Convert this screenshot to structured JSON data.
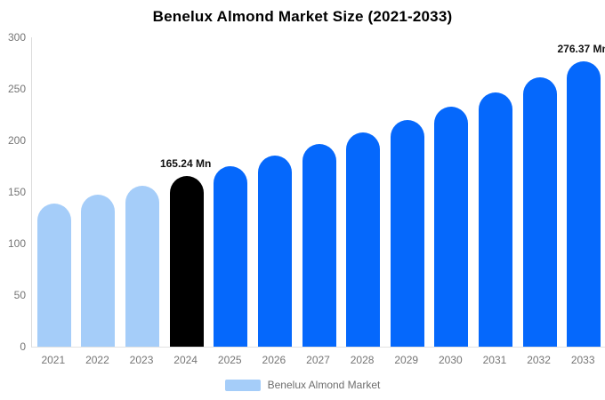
{
  "title": "Benelux Almond Market Size (2021-2033)",
  "chart_data": {
    "type": "bar",
    "title": "Benelux Almond Market Size (2021-2033)",
    "categories": [
      "2021",
      "2022",
      "2023",
      "2024",
      "2025",
      "2026",
      "2027",
      "2028",
      "2029",
      "2030",
      "2031",
      "2032",
      "2033"
    ],
    "values": [
      139.21,
      147.4,
      156.07,
      165.24,
      174.96,
      185.25,
      196.14,
      207.68,
      219.89,
      232.82,
      246.51,
      261.01,
      276.37
    ],
    "bar_colors": [
      "#a5cdf9",
      "#a5cdf9",
      "#a5cdf9",
      "#000000",
      "#0568fc",
      "#0568fc",
      "#0568fc",
      "#0568fc",
      "#0568fc",
      "#0568fc",
      "#0568fc",
      "#0568fc",
      "#0568fc"
    ],
    "xlabel": "",
    "ylabel": "",
    "ylim": [
      0,
      300
    ],
    "yticks": [
      0,
      50,
      100,
      150,
      200,
      250,
      300
    ],
    "grid": false,
    "legend_position": "bottom",
    "annotations": [
      {
        "category": "2024",
        "text": "165.24 Mn"
      },
      {
        "category": "2033",
        "text": "276.37 Mn"
      }
    ]
  },
  "legend": {
    "label": "Benelux Almond Market",
    "swatch_color": "#a5cdf9"
  },
  "colors": {
    "background": "#ffffff",
    "axis_line": "#dcdcdc",
    "tick_label": "#757575",
    "annotation_text": "#111111",
    "series_light": "#a5cdf9",
    "series_highlight": "#000000",
    "series_main": "#0568fc"
  }
}
